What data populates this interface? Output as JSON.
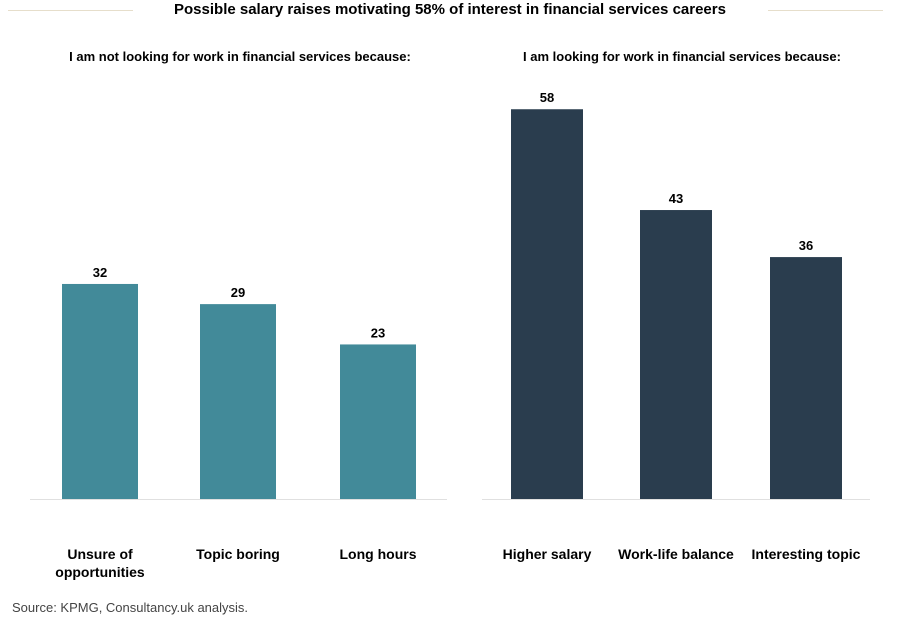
{
  "colors": {
    "left_bars": "#428a99",
    "right_bars": "#2a3d4e",
    "baseline": "#e0e0e0",
    "title_rule": "#e6decb"
  },
  "title": "Possible salary raises motivating 58% of interest in financial services careers",
  "source": "Source: KPMG, Consultancy.uk analysis.",
  "chart_data": [
    {
      "type": "bar",
      "title": "I am not looking for work in financial services because:",
      "categories": [
        [
          "Unsure of",
          "opportunities"
        ],
        [
          "Topic boring"
        ],
        [
          "Long hours"
        ]
      ],
      "values": [
        32,
        29,
        23
      ],
      "ylim": [
        0,
        60
      ],
      "grid": false,
      "color": "#428a99",
      "data_labels": true
    },
    {
      "type": "bar",
      "title": "I am looking for work in financial services because:",
      "categories": [
        [
          "Higher salary"
        ],
        [
          "Work-life balance"
        ],
        [
          "Interesting topic"
        ]
      ],
      "values": [
        58,
        43,
        36
      ],
      "ylim": [
        0,
        60
      ],
      "grid": false,
      "color": "#2a3d4e",
      "data_labels": true
    }
  ]
}
